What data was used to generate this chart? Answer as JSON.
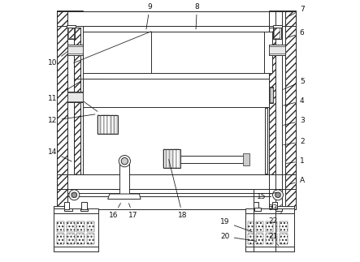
{
  "figure_width": 4.43,
  "figure_height": 3.23,
  "dpi": 100,
  "bg_color": "#ffffff",
  "line_color": "#2a2a2a",
  "lw": 0.7,
  "label_fontsize": 6.5,
  "labels": {
    "9": {
      "txt": [
        0.385,
        0.975
      ],
      "pt": [
        0.37,
        0.88
      ]
    },
    "8": {
      "txt": [
        0.565,
        0.975
      ],
      "pt": [
        0.56,
        0.88
      ]
    },
    "7": {
      "txt": [
        0.965,
        0.965
      ],
      "pt": [
        0.91,
        0.935
      ]
    },
    "6": {
      "txt": [
        0.965,
        0.875
      ],
      "pt": [
        0.905,
        0.855
      ]
    },
    "5": {
      "txt": [
        0.965,
        0.69
      ],
      "pt": [
        0.885,
        0.655
      ]
    },
    "4": {
      "txt": [
        0.965,
        0.615
      ],
      "pt": [
        0.885,
        0.595
      ]
    },
    "3": {
      "txt": [
        0.965,
        0.54
      ],
      "pt": [
        0.885,
        0.52
      ]
    },
    "2": {
      "txt": [
        0.965,
        0.46
      ],
      "pt": [
        0.885,
        0.445
      ]
    },
    "1": {
      "txt": [
        0.965,
        0.385
      ],
      "pt": [
        0.895,
        0.375
      ]
    },
    "A": {
      "txt": [
        0.965,
        0.31
      ],
      "pt": [
        0.91,
        0.295
      ]
    },
    "10": {
      "txt": [
        0.015,
        0.76
      ],
      "pt": [
        0.08,
        0.81
      ]
    },
    "11": {
      "txt": [
        0.015,
        0.625
      ],
      "pt": [
        0.13,
        0.695
      ]
    },
    "12": {
      "txt": [
        0.015,
        0.54
      ],
      "pt": [
        0.185,
        0.565
      ]
    },
    "14": {
      "txt": [
        0.015,
        0.42
      ],
      "pt": [
        0.095,
        0.38
      ]
    },
    "15": {
      "txt": [
        0.81,
        0.25
      ],
      "pt": [
        0.875,
        0.268
      ]
    },
    "23": {
      "txt": [
        0.855,
        0.205
      ],
      "pt": [
        0.888,
        0.218
      ]
    },
    "22": {
      "txt": [
        0.855,
        0.155
      ],
      "pt": [
        0.888,
        0.19
      ]
    },
    "21": {
      "txt": [
        0.855,
        0.098
      ],
      "pt": [
        0.875,
        0.062
      ]
    },
    "16": {
      "txt": [
        0.248,
        0.178
      ],
      "pt": [
        0.278,
        0.232
      ]
    },
    "17": {
      "txt": [
        0.322,
        0.178
      ],
      "pt": [
        0.302,
        0.232
      ]
    },
    "18": {
      "txt": [
        0.51,
        0.178
      ],
      "pt": [
        0.455,
        0.4
      ]
    },
    "19": {
      "txt": [
        0.672,
        0.152
      ],
      "pt": [
        0.782,
        0.113
      ]
    },
    "20": {
      "txt": [
        0.672,
        0.098
      ],
      "pt": [
        0.8,
        0.078
      ]
    }
  }
}
